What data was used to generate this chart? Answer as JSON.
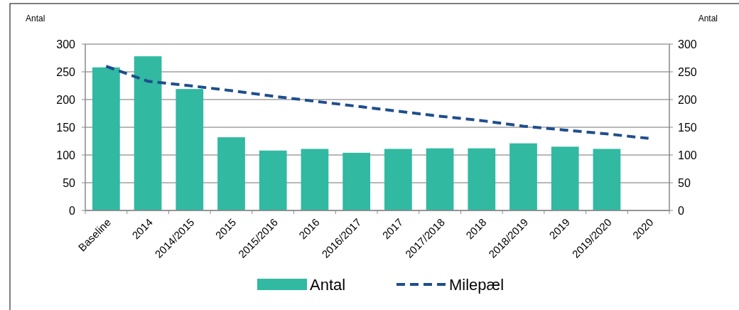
{
  "chart_data": {
    "type": "bar",
    "ylabel": "Antal",
    "y2label": "Antal",
    "categories": [
      "Baseline",
      "2014",
      "2014/2015",
      "2015",
      "2015/2016",
      "2016",
      "2016/2017",
      "2017",
      "2017/2018",
      "2018",
      "2018/2019",
      "2019",
      "2019/2020",
      "2020"
    ],
    "series": [
      {
        "name": "Antal",
        "color": "#31b9a2",
        "values": [
          258,
          278,
          219,
          132,
          108,
          111,
          104,
          111,
          112,
          112,
          121,
          115,
          111,
          null
        ]
      },
      {
        "name": "Milepæl",
        "type": "line",
        "color": "#1f4e8c",
        "line_style": "dashed",
        "marker": "none",
        "values": [
          260,
          233,
          225,
          216,
          206,
          197,
          188,
          179,
          170,
          162,
          152,
          145,
          138,
          130
        ]
      }
    ],
    "ylim": [
      0,
      300
    ],
    "yticks": [
      0,
      50,
      100,
      150,
      200,
      250,
      300
    ],
    "y2lim": [
      0,
      300
    ],
    "y2ticks": [
      0,
      50,
      100,
      150,
      200,
      250,
      300
    ],
    "grid": "y",
    "legend": "bottom"
  }
}
